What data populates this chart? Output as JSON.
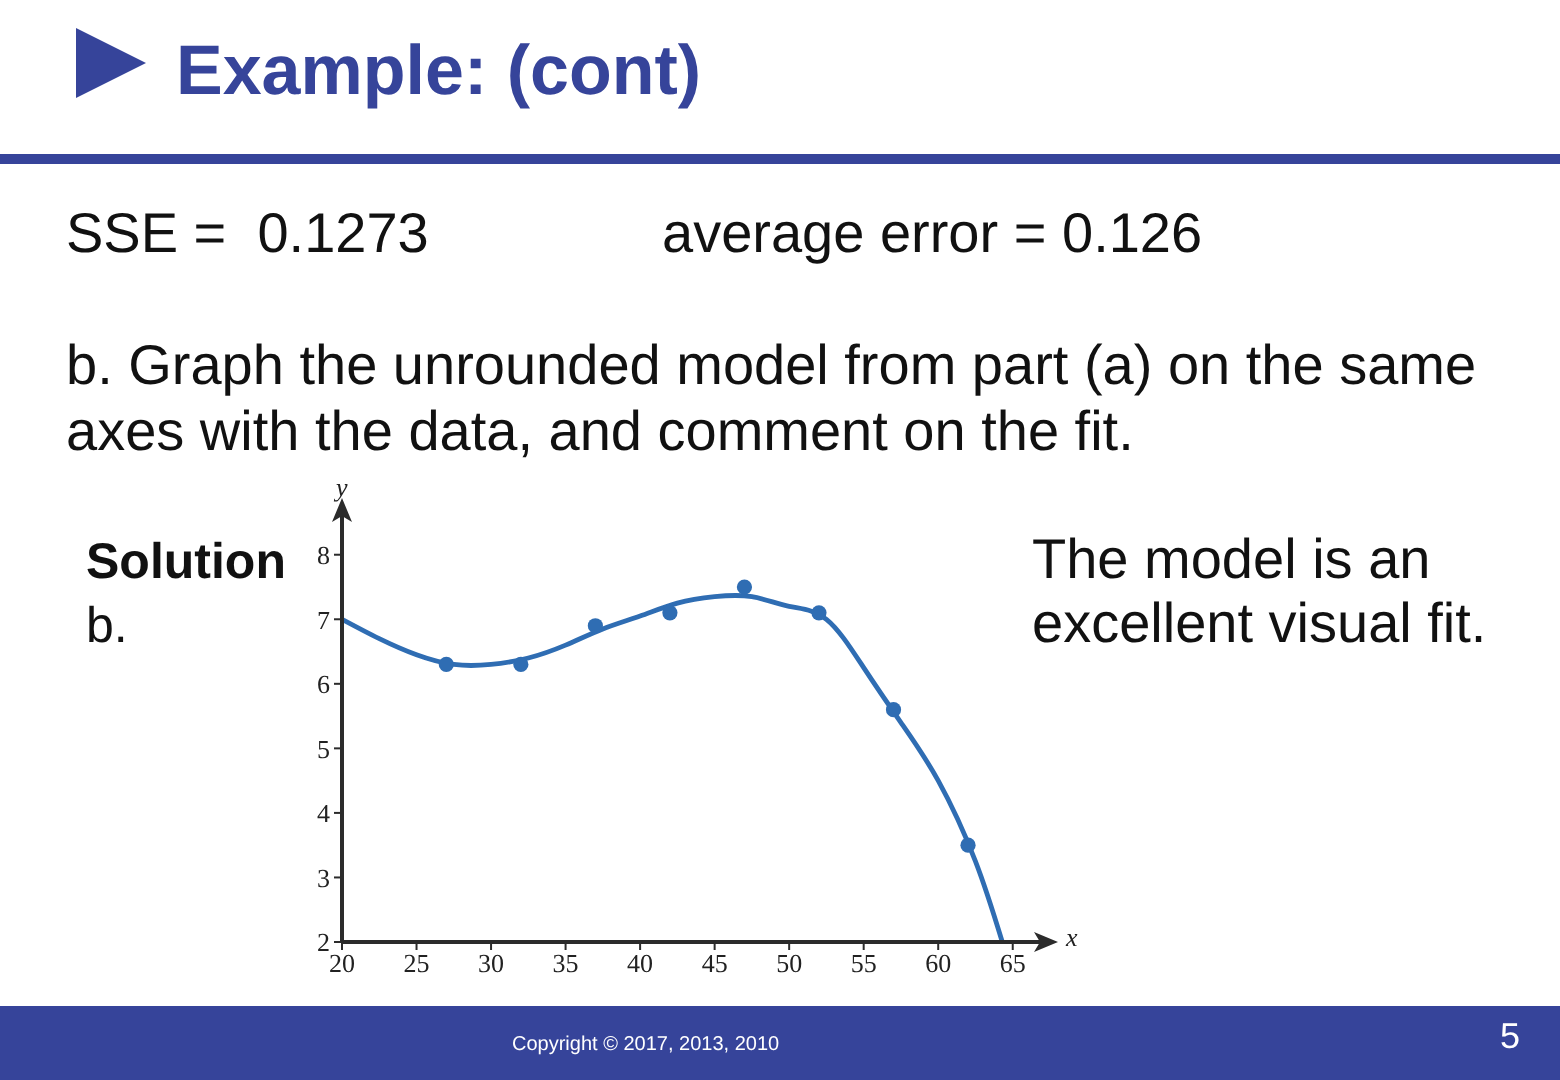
{
  "chart_data": {
    "type": "scatter",
    "title": "Example: (cont)",
    "xlabel": "x",
    "ylabel": "y",
    "xlim": [
      20,
      67.5
    ],
    "ylim": [
      2,
      8.6
    ],
    "xticks": [
      20,
      25,
      30,
      35,
      40,
      45,
      50,
      55,
      60,
      65
    ],
    "yticks": [
      2,
      3,
      4,
      5,
      6,
      7,
      8
    ],
    "series": [
      {
        "type": "line",
        "color": "#2f6db3",
        "marker": "none",
        "line_style": "solid",
        "x": [
          20,
          22.5,
          25,
          27.5,
          30,
          32.5,
          35,
          37.5,
          40,
          42.5,
          45,
          47.5,
          50,
          52.5,
          55,
          57.5,
          60,
          62.5,
          64.3
        ],
        "values": [
          7.0,
          6.7,
          6.45,
          6.3,
          6.3,
          6.4,
          6.6,
          6.85,
          7.05,
          7.25,
          7.35,
          7.35,
          7.2,
          7.0,
          6.25,
          5.4,
          4.5,
          3.25,
          2.0
        ]
      },
      {
        "color": "#2f6db3",
        "marker": "circle",
        "x": [
          27,
          32,
          37,
          42,
          47,
          52,
          57,
          62
        ],
        "values": [
          6.3,
          6.3,
          6.9,
          7.1,
          7.5,
          7.1,
          5.6,
          3.5
        ]
      }
    ],
    "annotations": [
      "SSE =  0.1273",
      "average error = 0.126",
      "b. Graph the unrounded model from part (a) on the same axes with the data, and comment on the fit.",
      "Solution",
      "b.",
      "The model is an excellent visual fit.",
      "Copyright © 2017, 2013, 2010",
      "5"
    ]
  }
}
